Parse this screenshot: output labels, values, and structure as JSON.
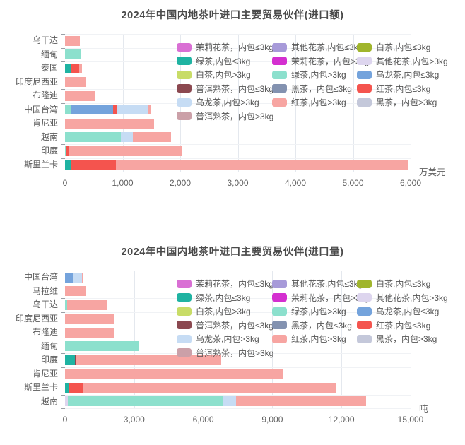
{
  "legend": [
    {
      "label": "茉莉花茶，内包≤3kg",
      "color": "#d96fd4"
    },
    {
      "label": "其他花茶,内包≤3kg",
      "color": "#a79ad9"
    },
    {
      "label": "白茶,内包≤3kg",
      "color": "#a0b52c"
    },
    {
      "label": "绿茶,内包≤3kg",
      "color": "#1fb3a2"
    },
    {
      "label": "茉莉花茶，内包>3kg",
      "color": "#d42fd0"
    },
    {
      "label": "其他花茶,内包>3kg",
      "color": "#ddd5ee"
    },
    {
      "label": "白茶,内包>3kg",
      "color": "#c8dc67"
    },
    {
      "label": "绿茶,内包>3kg",
      "color": "#8ce0cd"
    },
    {
      "label": "乌龙茶,内包≤3kg",
      "color": "#74a3dc"
    },
    {
      "label": "普洱熟茶，内包≤3kg",
      "color": "#8b4850"
    },
    {
      "label": "黑茶，内包≤3kg",
      "color": "#8392b0"
    },
    {
      "label": "红茶,内包≤3kg",
      "color": "#f4544e"
    },
    {
      "label": "乌龙茶,内包>3kg",
      "color": "#c6dcf4"
    },
    {
      "label": "红茶,内包>3kg",
      "color": "#f7a5a2"
    },
    {
      "label": "黑茶，内包>3kg",
      "color": "#c4c8da"
    },
    {
      "label": "普洱熟茶，内包>3kg",
      "color": "#cba0a8"
    }
  ],
  "chart_data": [
    {
      "type": "bar",
      "orientation": "horizontal",
      "stacked": true,
      "title": "2024年中国内地茶叶进口主要贸易伙伴(进口额)",
      "unit": "万美元",
      "xlim": [
        0,
        6000
      ],
      "xticks": [
        {
          "value": 0,
          "label": "0"
        },
        {
          "value": 1000,
          "label": "1,000"
        },
        {
          "value": 2000,
          "label": "2,000"
        },
        {
          "value": 3000,
          "label": "3,000"
        },
        {
          "value": 4000,
          "label": "4,000"
        },
        {
          "value": 5000,
          "label": "5,000"
        },
        {
          "value": 6000,
          "label": "6,000"
        }
      ],
      "categories": [
        "乌干达",
        "缅甸",
        "泰国",
        "印度尼西亚",
        "布隆迪",
        "中国台湾",
        "肯尼亚",
        "越南",
        "印度",
        "斯里兰卡"
      ],
      "bars": [
        {
          "category": "乌干达",
          "segments": [
            {
              "series": "红茶,内包>3kg",
              "value": 260
            }
          ]
        },
        {
          "category": "缅甸",
          "segments": [
            {
              "series": "绿茶,内包>3kg",
              "value": 270
            }
          ]
        },
        {
          "category": "泰国",
          "segments": [
            {
              "series": "绿茶,内包≤3kg",
              "value": 100
            },
            {
              "series": "红茶,内包≤3kg",
              "value": 140
            },
            {
              "series": "红茶,内包>3kg",
              "value": 60
            }
          ]
        },
        {
          "category": "印度尼西亚",
          "segments": [
            {
              "series": "红茶,内包>3kg",
              "value": 350
            }
          ]
        },
        {
          "category": "布隆迪",
          "segments": [
            {
              "series": "红茶,内包>3kg",
              "value": 515
            }
          ]
        },
        {
          "category": "中国台湾",
          "segments": [
            {
              "series": "绿茶,内包>3kg",
              "value": 95
            },
            {
              "series": "乌龙茶,内包≤3kg",
              "value": 740
            },
            {
              "series": "红茶,内包≤3kg",
              "value": 55
            },
            {
              "series": "乌龙茶,内包>3kg",
              "value": 550
            },
            {
              "series": "红茶,内包>3kg",
              "value": 60
            }
          ]
        },
        {
          "category": "肯尼亚",
          "segments": [
            {
              "series": "红茶,内包>3kg",
              "value": 1540
            }
          ]
        },
        {
          "category": "越南",
          "segments": [
            {
              "series": "绿茶,内包>3kg",
              "value": 970
            },
            {
              "series": "乌龙茶,内包>3kg",
              "value": 205
            },
            {
              "series": "红茶,内包>3kg",
              "value": 670
            }
          ]
        },
        {
          "category": "印度",
          "segments": [
            {
              "series": "绿茶,内包>3kg",
              "value": 30
            },
            {
              "series": "红茶,内包≤3kg",
              "value": 40
            },
            {
              "series": "红茶,内包>3kg",
              "value": 1960
            }
          ]
        },
        {
          "category": "斯里兰卡",
          "segments": [
            {
              "series": "绿茶,内包≤3kg",
              "value": 110
            },
            {
              "series": "红茶,内包≤3kg",
              "value": 775
            },
            {
              "series": "红茶,内包>3kg",
              "value": 5065
            }
          ]
        }
      ]
    },
    {
      "type": "bar",
      "orientation": "horizontal",
      "stacked": true,
      "title": "2024年中国内地茶叶进口主要贸易伙伴(进口量)",
      "unit": "吨",
      "xlim": [
        0,
        15000
      ],
      "xticks": [
        {
          "value": 0,
          "label": "0"
        },
        {
          "value": 3000,
          "label": "3,000"
        },
        {
          "value": 6000,
          "label": "6,000"
        },
        {
          "value": 9000,
          "label": "9,000"
        },
        {
          "value": 12000,
          "label": "12,000"
        },
        {
          "value": 15000,
          "label": "15,000"
        }
      ],
      "categories": [
        "中国台湾",
        "马拉维",
        "乌干达",
        "印度尼西亚",
        "布隆迪",
        "缅甸",
        "印度",
        "肯尼亚",
        "斯里兰卡",
        "越南"
      ],
      "bars": [
        {
          "category": "中国台湾",
          "segments": [
            {
              "series": "乌龙茶,内包≤3kg",
              "value": 350
            },
            {
              "series": "红茶,内包≤3kg",
              "value": 25
            },
            {
              "series": "乌龙茶,内包>3kg",
              "value": 370
            },
            {
              "series": "红茶,内包>3kg",
              "value": 65
            }
          ]
        },
        {
          "category": "马拉维",
          "segments": [
            {
              "series": "红茶,内包>3kg",
              "value": 890
            }
          ]
        },
        {
          "category": "乌干达",
          "segments": [
            {
              "series": "绿茶,内包>3kg",
              "value": 90
            },
            {
              "series": "红茶,内包>3kg",
              "value": 1740
            }
          ]
        },
        {
          "category": "印度尼西亚",
          "segments": [
            {
              "series": "红茶,内包>3kg",
              "value": 2140
            }
          ]
        },
        {
          "category": "布隆迪",
          "segments": [
            {
              "series": "红茶,内包>3kg",
              "value": 2130
            }
          ]
        },
        {
          "category": "缅甸",
          "segments": [
            {
              "series": "绿茶,内包>3kg",
              "value": 3180
            }
          ]
        },
        {
          "category": "印度",
          "segments": [
            {
              "series": "绿茶,内包≤3kg",
              "value": 440
            },
            {
              "series": "普洱熟茶，内包≤3kg",
              "value": 40
            },
            {
              "series": "红茶,内包>3kg",
              "value": 6290
            }
          ]
        },
        {
          "category": "肯尼亚",
          "segments": [
            {
              "series": "红茶,内包>3kg",
              "value": 9470
            }
          ]
        },
        {
          "category": "斯里兰卡",
          "segments": [
            {
              "series": "绿茶,内包≤3kg",
              "value": 140
            },
            {
              "series": "红茶,内包≤3kg",
              "value": 615
            },
            {
              "series": "红茶,内包>3kg",
              "value": 11025
            }
          ]
        },
        {
          "category": "越南",
          "segments": [
            {
              "series": "其他花茶,内包>3kg",
              "value": 120
            },
            {
              "series": "绿茶,内包>3kg",
              "value": 6720
            },
            {
              "series": "乌龙茶,内包>3kg",
              "value": 580
            },
            {
              "series": "红茶,内包>3kg",
              "value": 5660
            }
          ]
        }
      ]
    }
  ]
}
